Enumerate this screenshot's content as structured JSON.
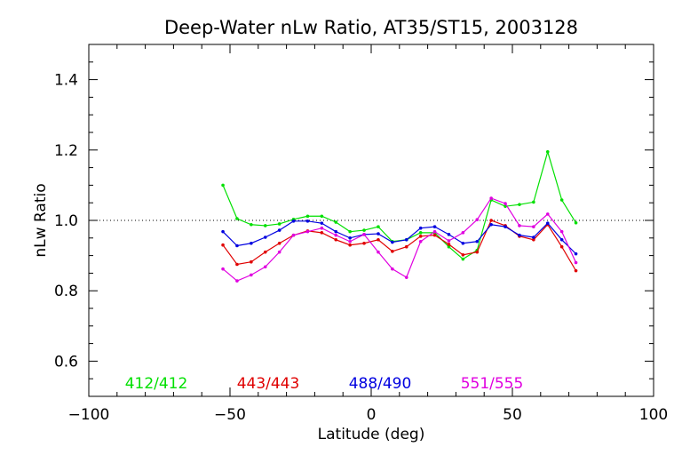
{
  "chart_data": {
    "type": "line",
    "title": "Deep-Water nLw Ratio, AT35/ST15, 2003128",
    "xlabel": "Latitude (deg)",
    "ylabel": "nLw Ratio",
    "xlim": [
      -100,
      100
    ],
    "ylim": [
      0.5,
      1.5
    ],
    "xticks": [
      -100,
      -50,
      0,
      50,
      100
    ],
    "yticks": [
      0.6,
      0.8,
      1.0,
      1.2,
      1.4
    ],
    "ytick_labels": [
      "0.6",
      "0.8",
      "1.0",
      "1.2",
      "1.4"
    ],
    "reference_line": 1.0,
    "grid": false,
    "x": [
      -52.5,
      -47.5,
      -42.5,
      -37.5,
      -32.5,
      -27.5,
      -22.5,
      -17.5,
      -12.5,
      -7.5,
      -2.5,
      2.5,
      7.5,
      12.5,
      17.5,
      22.5,
      27.5,
      32.5,
      37.5,
      42.5,
      47.5,
      52.5,
      57.5,
      62.5,
      67.5,
      72.5
    ],
    "series": [
      {
        "name": "412/412",
        "color": "#00e000",
        "values": [
          1.1,
          1.005,
          0.988,
          0.985,
          0.99,
          1.003,
          1.012,
          1.012,
          0.995,
          0.968,
          0.972,
          0.982,
          0.94,
          0.945,
          0.965,
          0.965,
          0.925,
          0.89,
          0.915,
          1.058,
          1.04,
          1.045,
          1.052,
          1.195,
          1.058,
          0.993
        ]
      },
      {
        "name": "443/443",
        "color": "#e00000",
        "values": [
          0.93,
          0.875,
          0.882,
          0.91,
          0.935,
          0.958,
          0.97,
          0.965,
          0.945,
          0.93,
          0.935,
          0.945,
          0.912,
          0.925,
          0.955,
          0.958,
          0.932,
          0.902,
          0.91,
          1.0,
          0.985,
          0.955,
          0.945,
          0.988,
          0.925,
          0.857
        ]
      },
      {
        "name": "488/490",
        "color": "#0000e0",
        "values": [
          0.968,
          0.928,
          0.935,
          0.952,
          0.972,
          0.998,
          0.998,
          0.992,
          0.968,
          0.95,
          0.96,
          0.962,
          0.938,
          0.945,
          0.978,
          0.982,
          0.96,
          0.935,
          0.94,
          0.988,
          0.982,
          0.958,
          0.952,
          0.992,
          0.945,
          0.905
        ]
      },
      {
        "name": "551/555",
        "color": "#e000e0",
        "values": [
          0.862,
          0.828,
          0.845,
          0.868,
          0.91,
          0.958,
          0.968,
          0.978,
          0.958,
          0.94,
          0.96,
          0.91,
          0.862,
          0.838,
          0.94,
          0.968,
          0.942,
          0.965,
          1.002,
          1.063,
          1.048,
          0.985,
          0.982,
          1.018,
          0.968,
          0.88
        ]
      }
    ]
  }
}
